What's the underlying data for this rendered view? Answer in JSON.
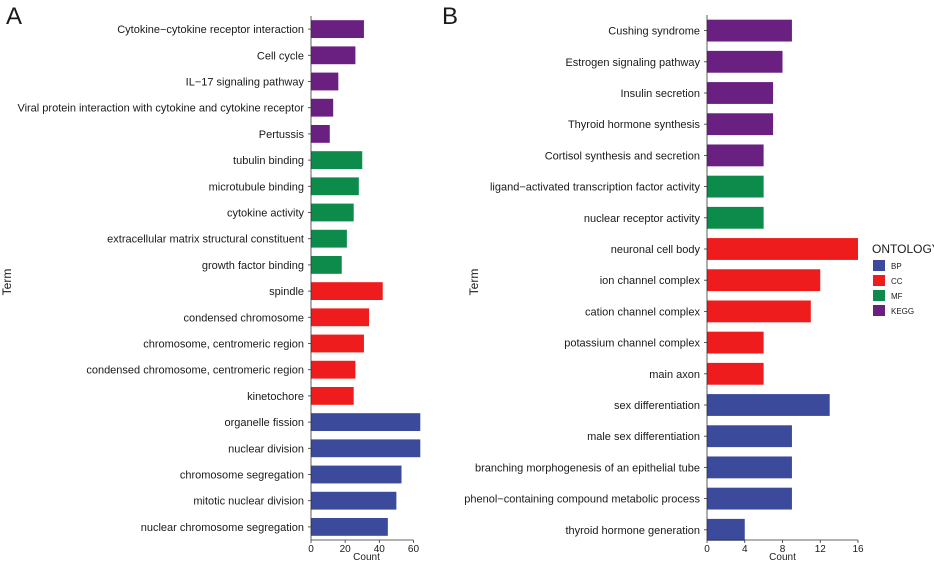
{
  "legend": {
    "title": "ONTOLOGY",
    "items": [
      {
        "key": "BP",
        "color": "#3b4a9a"
      },
      {
        "key": "CC",
        "color": "#ee1c1c"
      },
      {
        "key": "MF",
        "color": "#0c8b4b"
      },
      {
        "key": "KEGG",
        "color": "#6a2081"
      }
    ]
  },
  "chart_data": [
    {
      "panel": "A",
      "type": "bar",
      "orientation": "horizontal",
      "xlabel": "Count",
      "ylabel": "Term",
      "xlim": [
        0,
        65
      ],
      "xticks": [
        0,
        20,
        40,
        60
      ],
      "categories": [
        "Cytokine−cytokine receptor interaction",
        "Cell cycle",
        "IL−17 signaling pathway",
        "Viral protein interaction with cytokine and cytokine receptor",
        "Pertussis",
        "tubulin binding",
        "microtubule binding",
        "cytokine activity",
        "extracellular matrix structural constituent",
        "growth factor binding",
        "spindle",
        "condensed chromosome",
        "chromosome, centromeric region",
        "condensed chromosome, centromeric region",
        "kinetochore",
        "organelle fission",
        "nuclear division",
        "chromosome segregation",
        "mitotic nuclear division",
        "nuclear chromosome segregation"
      ],
      "values": [
        31,
        26,
        16,
        13,
        11,
        30,
        28,
        25,
        21,
        18,
        42,
        34,
        31,
        26,
        25,
        64,
        64,
        53,
        50,
        45
      ],
      "ontology": [
        "KEGG",
        "KEGG",
        "KEGG",
        "KEGG",
        "KEGG",
        "MF",
        "MF",
        "MF",
        "MF",
        "MF",
        "CC",
        "CC",
        "CC",
        "CC",
        "CC",
        "BP",
        "BP",
        "BP",
        "BP",
        "BP"
      ]
    },
    {
      "panel": "B",
      "type": "bar",
      "orientation": "horizontal",
      "xlabel": "Count",
      "ylabel": "Term",
      "xlim": [
        0,
        16
      ],
      "xticks": [
        0,
        4,
        8,
        12,
        16
      ],
      "categories": [
        "Cushing syndrome",
        "Estrogen signaling pathway",
        "Insulin secretion",
        "Thyroid hormone synthesis",
        "Cortisol synthesis and secretion",
        "ligand−activated transcription factor activity",
        "nuclear receptor activity",
        "neuronal cell body",
        "ion channel complex",
        "cation channel complex",
        "potassium channel complex",
        "main axon",
        "sex differentiation",
        "male sex differentiation",
        "branching morphogenesis of an epithelial tube",
        "phenol−containing compound metabolic process",
        "thyroid hormone generation"
      ],
      "values": [
        9,
        8,
        7,
        7,
        6,
        6,
        6,
        16,
        12,
        11,
        6,
        6,
        13,
        9,
        9,
        9,
        4
      ],
      "ontology": [
        "KEGG",
        "KEGG",
        "KEGG",
        "KEGG",
        "KEGG",
        "MF",
        "MF",
        "CC",
        "CC",
        "CC",
        "CC",
        "CC",
        "BP",
        "BP",
        "BP",
        "BP",
        "BP"
      ]
    }
  ]
}
